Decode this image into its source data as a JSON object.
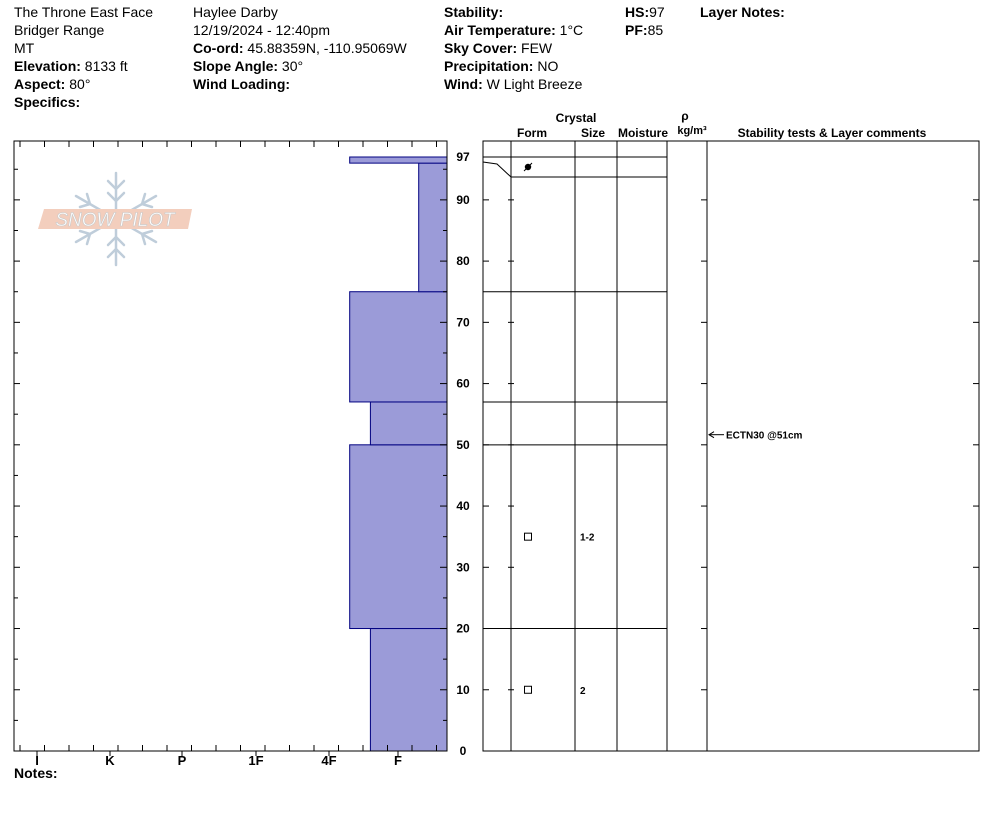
{
  "header": {
    "location": "The Throne East Face",
    "range": "Bridger Range",
    "state": "MT",
    "elevation_label": "Elevation:",
    "elevation_value": " 8133 ft",
    "aspect_label": "Aspect:",
    "aspect_value": " 80°",
    "specifics_label": "Specifics:",
    "observer": "Haylee Darby",
    "datetime": "12/19/2024 - 12:40pm",
    "coord_label": "Co-ord:",
    "coord_value": " 45.88359N, -110.95069W",
    "slope_label": "Slope Angle:",
    "slope_value": " 30°",
    "wind_loading_label": "Wind Loading:",
    "stability_label": "Stability:",
    "air_temp_label": "Air Temperature:",
    "air_temp_value": " 1°C",
    "sky_label": "Sky Cover:",
    "sky_value": " FEW",
    "precip_label": "Precipitation:",
    "precip_value": " NO",
    "wind_label": "Wind:",
    "wind_value": "  W Light Breeze",
    "hs_label": "HS:",
    "hs_value": "97",
    "pf_label": "PF:",
    "pf_value": "85",
    "layer_notes_label": "Layer Notes:"
  },
  "logo_text": "SNOW PILOT",
  "notes_label": "Notes:",
  "colors": {
    "hardness_fill": "#9b9bd8",
    "hardness_stroke": "#000080",
    "logo": "#f0c8b8"
  },
  "chart_data": {
    "type": "snow-profile",
    "y_label_top": "97",
    "y_ticks": [
      0,
      10,
      20,
      30,
      40,
      50,
      60,
      70,
      80,
      90
    ],
    "ylim": [
      0,
      97
    ],
    "hardness_scale": [
      "I",
      "K",
      "P",
      "1F",
      "4F",
      "F"
    ],
    "hardness_layers": [
      {
        "bottom": 0,
        "top": 20,
        "hardness": 5.6
      },
      {
        "bottom": 20,
        "top": 50,
        "hardness": 5.3
      },
      {
        "bottom": 50,
        "top": 57,
        "hardness": 5.6
      },
      {
        "bottom": 57,
        "top": 75,
        "hardness": 5.3
      },
      {
        "bottom": 75,
        "top": 96,
        "hardness": 6.3
      },
      {
        "bottom": 96,
        "top": 97,
        "hardness": 5.3
      }
    ],
    "table_headers": {
      "crystal": "Crystal",
      "form": "Form",
      "size": "Size",
      "moisture": "Moisture",
      "rho": "ρ",
      "density_unit": "kg/m³",
      "comments": "Stability tests & Layer comments"
    },
    "layer_boundaries": [
      20,
      50,
      57,
      75,
      94,
      97
    ],
    "crystals": [
      {
        "depth": 10,
        "form": "faceted-square",
        "size": "2"
      },
      {
        "depth": 35,
        "form": "faceted-square",
        "size": "1-2"
      },
      {
        "depth": 95.5,
        "form": "melt-freeze",
        "size": ""
      }
    ],
    "stability_tests": [
      {
        "depth": 51,
        "text": "ECTN30 @51cm"
      }
    ]
  }
}
